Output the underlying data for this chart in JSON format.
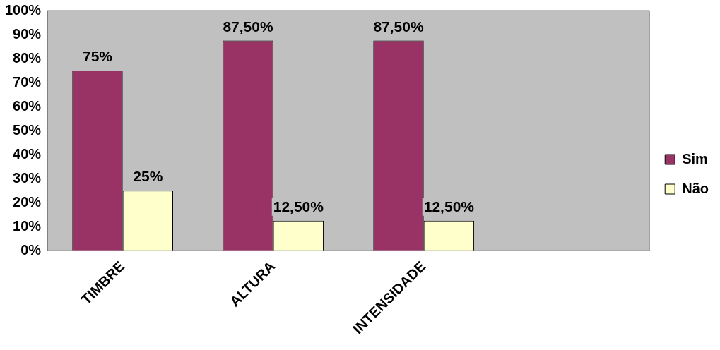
{
  "chart_data": {
    "type": "bar",
    "categories": [
      "TIMBRE",
      "ALTURA",
      "INTENSIDADE",
      null
    ],
    "series": [
      {
        "name": "Sim",
        "color": "#993366",
        "values": [
          75,
          87.5,
          87.5,
          null
        ],
        "value_labels": [
          "75%",
          "87,50%",
          "87,50%",
          null
        ]
      },
      {
        "name": "Não",
        "color": "#ffffcc",
        "values": [
          25,
          12.5,
          12.5,
          null
        ],
        "value_labels": [
          "25%",
          "12,50%",
          "12,50%",
          null
        ]
      }
    ],
    "ylim": [
      0,
      100
    ],
    "yticks": [
      {
        "value": 0,
        "label": "0%"
      },
      {
        "value": 10,
        "label": "10%"
      },
      {
        "value": 20,
        "label": "20%"
      },
      {
        "value": 30,
        "label": "30%"
      },
      {
        "value": 40,
        "label": "40%"
      },
      {
        "value": 50,
        "label": "50%"
      },
      {
        "value": 60,
        "label": "60%"
      },
      {
        "value": 70,
        "label": "70%"
      },
      {
        "value": 80,
        "label": "80%"
      },
      {
        "value": 90,
        "label": "90%"
      },
      {
        "value": 100,
        "label": "100%"
      }
    ],
    "grid": "y",
    "legend": "right"
  }
}
